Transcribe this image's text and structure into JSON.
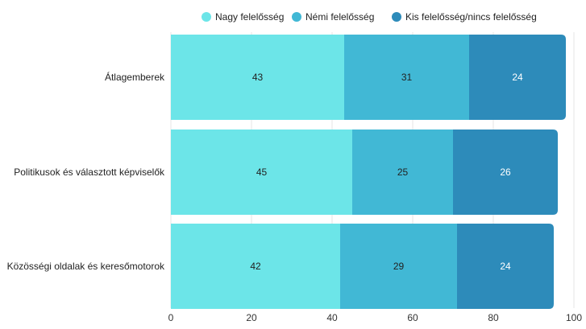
{
  "chart_data": {
    "type": "bar",
    "orientation": "horizontal",
    "stacked": true,
    "title": "",
    "xlabel": "",
    "ylabel": "",
    "xlim": [
      0,
      100
    ],
    "x_ticks": [
      0,
      20,
      40,
      60,
      80,
      100
    ],
    "grid": true,
    "legend_position": "top-right",
    "categories": [
      "Átlagemberek",
      "Politikusok és választott képviselők",
      "Közösségi oldalak és keresőmotorok"
    ],
    "series": [
      {
        "name": "Nagy felelősség",
        "color": "#6ce5e8",
        "label_color": "#222222",
        "values": [
          43,
          45,
          42
        ]
      },
      {
        "name": "Némi felelősség",
        "color": "#41b8d5",
        "label_color": "#222222",
        "values": [
          31,
          25,
          29
        ]
      },
      {
        "name": "Kis felelősség/nincs felelősség",
        "color": "#2d8bba",
        "label_color": "#ffffff",
        "values": [
          24,
          26,
          24
        ]
      }
    ]
  }
}
